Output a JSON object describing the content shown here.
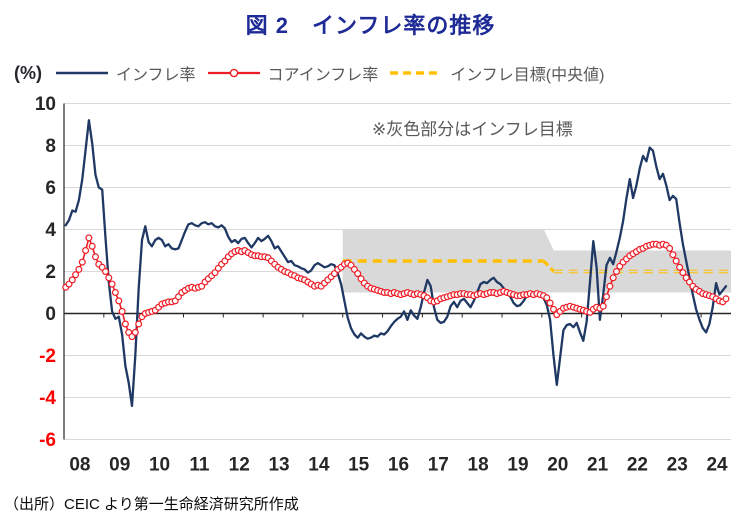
{
  "title": "図 2　インフレ率の推移",
  "y_unit": "(%)",
  "legend": {
    "series1_label": "インフレ率",
    "series2_label": "コアインフレ率",
    "series3_label": "インフレ目標(中央値)"
  },
  "annotation": "※灰色部分はインフレ目標",
  "source": "（出所）CEIC より第一生命経済研究所作成",
  "colors": {
    "title": "#1e2b96",
    "headline_line": "#1f3864",
    "core_line": "#ee1c25",
    "target_dash": "#ffc000",
    "target_band": "#d9d9d9",
    "gridline": "#d9d9d9",
    "axis": "#262626",
    "tick_label_positive": "#262626",
    "tick_label_negative": "#ff0000",
    "legend_text": "#595959"
  },
  "chart_data": {
    "type": "line",
    "title": "図2 インフレ率の推移",
    "xlabel": "",
    "ylabel": "(%)",
    "ylim": [
      -6,
      10
    ],
    "y_ticks": [
      10,
      8,
      6,
      4,
      2,
      0,
      -2,
      -4,
      -6
    ],
    "x_tick_labels": [
      "08",
      "09",
      "10",
      "11",
      "12",
      "13",
      "14",
      "15",
      "16",
      "17",
      "18",
      "19",
      "20",
      "21",
      "22",
      "23",
      "24"
    ],
    "grid": "horizontal",
    "legend_position": "top",
    "frequency": "monthly",
    "x_start": "2008-01",
    "x_end": "2024-08",
    "series": [
      {
        "name": "インフレ率",
        "style": "solid",
        "color": "#1f3864",
        "values": [
          4.2,
          4.45,
          4.9,
          4.85,
          5.4,
          6.4,
          7.8,
          9.2,
          8.1,
          6.6,
          6.0,
          5.9,
          3.6,
          1.5,
          0.1,
          -0.25,
          -0.15,
          -1.0,
          -2.5,
          -3.3,
          -4.4,
          -2.0,
          1.2,
          3.5,
          4.15,
          3.4,
          3.2,
          3.5,
          3.6,
          3.5,
          3.2,
          3.3,
          3.1,
          3.05,
          3.1,
          3.5,
          3.9,
          4.25,
          4.3,
          4.2,
          4.15,
          4.3,
          4.35,
          4.25,
          4.3,
          4.15,
          4.1,
          4.2,
          4.05,
          3.65,
          3.4,
          3.5,
          3.35,
          3.55,
          3.6,
          3.35,
          3.15,
          3.35,
          3.6,
          3.45,
          3.55,
          3.7,
          3.45,
          3.1,
          3.2,
          2.95,
          2.7,
          2.45,
          2.5,
          2.3,
          2.25,
          2.15,
          2.1,
          1.95,
          2.05,
          2.3,
          2.4,
          2.3,
          2.2,
          2.25,
          2.35,
          2.3,
          1.9,
          1.4,
          0.6,
          -0.2,
          -0.7,
          -1.0,
          -1.15,
          -0.95,
          -1.1,
          -1.2,
          -1.15,
          -1.05,
          -1.1,
          -0.95,
          -1.0,
          -0.85,
          -0.6,
          -0.4,
          -0.25,
          -0.15,
          0.1,
          -0.3,
          0.15,
          -0.1,
          -0.25,
          0.3,
          1.0,
          1.6,
          1.3,
          0.3,
          -0.3,
          -0.45,
          -0.4,
          -0.15,
          0.35,
          0.55,
          0.3,
          0.6,
          0.7,
          0.5,
          0.3,
          0.6,
          1.0,
          1.4,
          1.5,
          1.45,
          1.6,
          1.7,
          1.5,
          1.4,
          1.2,
          1.0,
          0.8,
          0.5,
          0.35,
          0.4,
          0.6,
          0.85,
          0.95,
          1.0,
          0.9,
          0.8,
          0.75,
          0.4,
          -0.3,
          -2.0,
          -3.4,
          -2.1,
          -0.8,
          -0.55,
          -0.5,
          -0.65,
          -0.45,
          -0.9,
          -1.3,
          -0.4,
          1.5,
          3.45,
          2.2,
          -0.3,
          0.9,
          2.3,
          2.65,
          2.35,
          2.95,
          3.6,
          4.4,
          5.5,
          6.4,
          5.5,
          6.1,
          6.9,
          7.5,
          7.25,
          7.9,
          7.75,
          7.0,
          6.4,
          6.65,
          6.1,
          5.4,
          5.6,
          5.45,
          4.3,
          3.3,
          2.5,
          1.7,
          0.9,
          0.2,
          -0.3,
          -0.7,
          -0.9,
          -0.5,
          0.3,
          1.45,
          0.9,
          1.1,
          1.3
        ]
      },
      {
        "name": "コアインフレ率",
        "style": "solid-with-circle-markers",
        "color": "#ee1c25",
        "values": [
          1.25,
          1.4,
          1.6,
          1.85,
          2.1,
          2.45,
          3.0,
          3.6,
          3.2,
          2.7,
          2.35,
          2.2,
          2.0,
          1.7,
          1.4,
          1.0,
          0.6,
          0.1,
          -0.5,
          -0.9,
          -1.1,
          -0.9,
          -0.5,
          -0.15,
          0.0,
          0.05,
          0.1,
          0.15,
          0.3,
          0.45,
          0.5,
          0.55,
          0.55,
          0.6,
          0.8,
          1.0,
          1.1,
          1.2,
          1.25,
          1.2,
          1.25,
          1.3,
          1.5,
          1.65,
          1.8,
          1.95,
          2.15,
          2.35,
          2.5,
          2.7,
          2.85,
          2.95,
          3.0,
          2.95,
          3.0,
          2.9,
          2.8,
          2.75,
          2.75,
          2.7,
          2.7,
          2.65,
          2.5,
          2.35,
          2.2,
          2.1,
          2.0,
          1.95,
          1.85,
          1.8,
          1.7,
          1.65,
          1.6,
          1.5,
          1.4,
          1.3,
          1.35,
          1.3,
          1.45,
          1.6,
          1.75,
          1.9,
          2.1,
          2.2,
          2.35,
          2.4,
          2.3,
          2.1,
          1.9,
          1.65,
          1.45,
          1.3,
          1.2,
          1.15,
          1.1,
          1.05,
          1.0,
          1.0,
          0.95,
          1.0,
          0.95,
          0.9,
          0.95,
          1.0,
          0.95,
          0.9,
          0.95,
          0.9,
          0.85,
          0.75,
          0.6,
          0.55,
          0.6,
          0.7,
          0.75,
          0.8,
          0.85,
          0.9,
          0.9,
          0.95,
          0.95,
          0.9,
          0.9,
          0.85,
          0.9,
          0.95,
          0.9,
          0.95,
          1.0,
          1.0,
          0.95,
          1.0,
          1.05,
          1.0,
          0.95,
          0.9,
          0.85,
          0.85,
          0.9,
          0.9,
          0.95,
          0.9,
          0.95,
          0.9,
          0.85,
          0.75,
          0.5,
          0.2,
          -0.05,
          0.1,
          0.25,
          0.3,
          0.35,
          0.3,
          0.25,
          0.2,
          0.15,
          0.1,
          0.05,
          0.2,
          0.3,
          0.25,
          0.35,
          0.8,
          1.3,
          1.7,
          2.0,
          2.25,
          2.45,
          2.6,
          2.75,
          2.85,
          2.95,
          3.05,
          3.1,
          3.2,
          3.25,
          3.3,
          3.3,
          3.25,
          3.3,
          3.25,
          3.1,
          2.8,
          2.5,
          2.2,
          1.95,
          1.7,
          1.5,
          1.3,
          1.15,
          1.05,
          0.95,
          0.9,
          0.85,
          0.8,
          0.7,
          0.6,
          0.55,
          0.7
        ]
      },
      {
        "name": "インフレ目標(中央値)",
        "style": "dashed",
        "color": "#ffc000",
        "segments": [
          {
            "start_year": 2015.0,
            "end_year": 2020.05,
            "value": 2.5
          },
          {
            "start_year": 2020.3,
            "end_year": 2024.75,
            "value": 2.0
          }
        ]
      }
    ],
    "target_band": {
      "label": "インフレ目標",
      "color": "#d9d9d9",
      "segments": [
        {
          "start_year": 2015.0,
          "end_year": 2020.05,
          "low": 1,
          "high": 4
        },
        {
          "start_year": 2020.3,
          "end_year": 2024.75,
          "low": 1,
          "high": 3
        }
      ]
    }
  }
}
